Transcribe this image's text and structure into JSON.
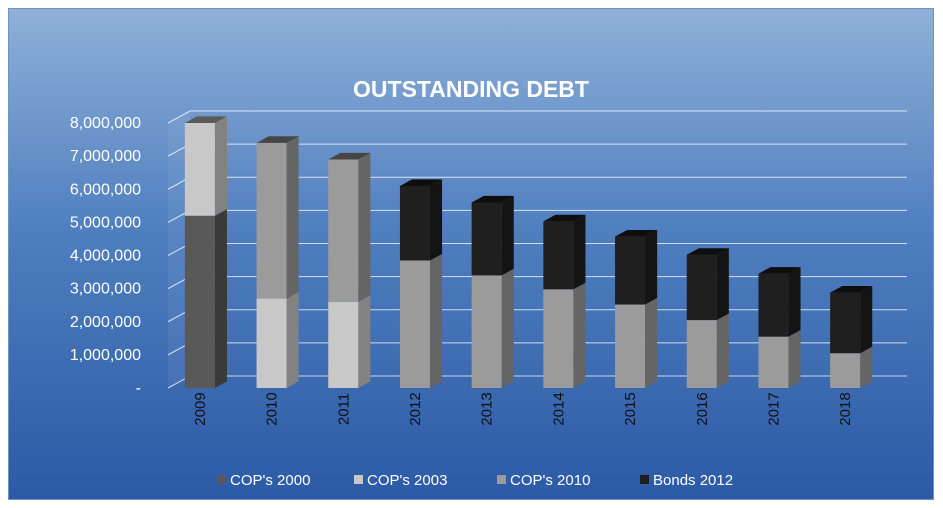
{
  "chart_data": {
    "type": "bar",
    "stacked": true,
    "style": "3d-column",
    "title": "OUTSTANDING DEBT",
    "xlabel": "",
    "ylabel": "",
    "categories": [
      "2009",
      "2010",
      "2011",
      "2012",
      "2013",
      "2014",
      "2015",
      "2016",
      "2017",
      "2018"
    ],
    "yticks": [
      "-",
      "1,000,000",
      "2,000,000",
      "3,000,000",
      "4,000,000",
      "5,000,000",
      "6,000,000",
      "7,000,000",
      "8,000,000"
    ],
    "ylim": [
      0,
      8000000
    ],
    "grid": true,
    "legend_position": "bottom",
    "series": [
      {
        "name": "COP's 2000",
        "color": "#595959",
        "values": [
          5200000,
          0,
          0,
          0,
          0,
          0,
          0,
          0,
          0,
          0
        ]
      },
      {
        "name": "COP's 2003",
        "color": "#c8c8c8",
        "values": [
          2800000,
          2700000,
          2600000,
          0,
          0,
          0,
          0,
          0,
          0,
          0
        ]
      },
      {
        "name": "COP's 2010",
        "color": "#9b9b9b",
        "values": [
          0,
          4700000,
          4300000,
          3850000,
          3400000,
          2980000,
          2520000,
          2050000,
          1550000,
          1050000
        ]
      },
      {
        "name": "Bonds 2012",
        "color": "#1f1f1f",
        "values": [
          0,
          0,
          0,
          2250000,
          2200000,
          2050000,
          2050000,
          1970000,
          1900000,
          1830000
        ]
      }
    ]
  }
}
